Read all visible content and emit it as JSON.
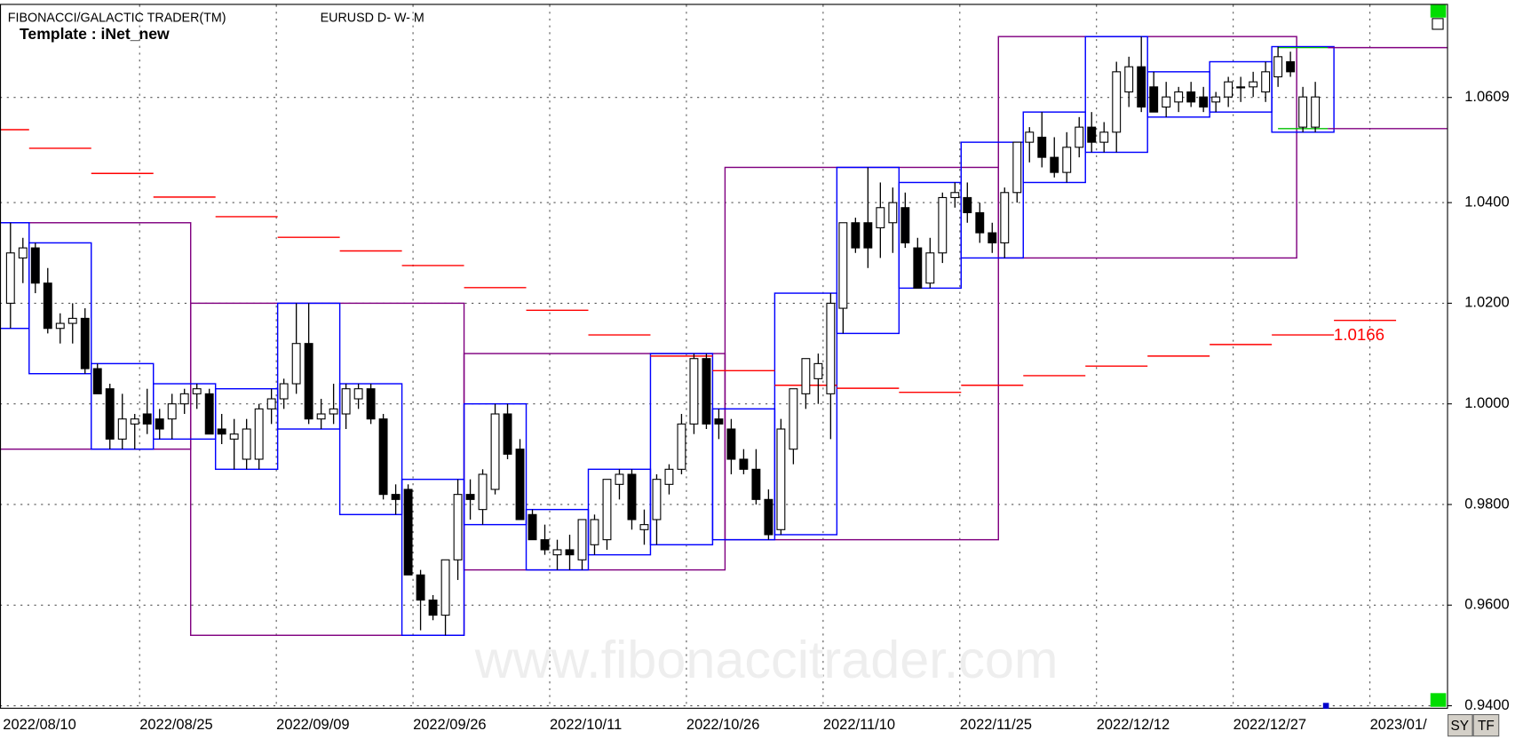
{
  "chart_data": {
    "type": "candlestick",
    "title": "FIBONACCI/GALACTIC TRADER(TM)",
    "subtitle": "EURUSD D- W- M",
    "template": "Template : iNet_new",
    "watermark": "www.fibonaccitrader.com",
    "buttons": [
      "SY",
      "TF"
    ],
    "ylim": [
      0.9396,
      1.0793
    ],
    "yticks": [
      1.0609,
      {
        "value": 1.04,
        "label": "1.0400"
      },
      {
        "value": 1.02,
        "label": "1.0200"
      },
      {
        "value": 1,
        "label": "1.0000"
      },
      {
        "value": 0.98,
        "label": "0.9800"
      },
      {
        "value": 0.96,
        "label": "0.9600"
      },
      {
        "value": 0.94,
        "label": "0.9400"
      }
    ],
    "grid": true,
    "categories": [
      "2022/08/10",
      null,
      null,
      null,
      null,
      null,
      null,
      null,
      null,
      null,
      null,
      "2022/08/25",
      null,
      null,
      null,
      null,
      null,
      null,
      null,
      null,
      null,
      null,
      "2022/09/09",
      null,
      null,
      null,
      null,
      null,
      null,
      null,
      null,
      null,
      null,
      "2022/09/26",
      null,
      null,
      null,
      null,
      null,
      null,
      null,
      null,
      null,
      null,
      "2022/10/11",
      null,
      null,
      null,
      null,
      null,
      null,
      null,
      null,
      null,
      null,
      "2022/10/26",
      null,
      null,
      null,
      null,
      null,
      null,
      null,
      null,
      null,
      null,
      "2022/11/10",
      null,
      null,
      null,
      null,
      null,
      null,
      null,
      null,
      null,
      null,
      "2022/11/25",
      null,
      null,
      null,
      null,
      null,
      null,
      null,
      null,
      null,
      null,
      "2022/12/12",
      null,
      null,
      null,
      null,
      null,
      null,
      null,
      null,
      null,
      null,
      "2022/12/27",
      null,
      null,
      null,
      null,
      null,
      null,
      null,
      null,
      null,
      null,
      "2023/01/"
    ],
    "ohlc": [
      null,
      [
        1.02,
        1.036,
        1.015,
        1.03
      ],
      [
        1.029,
        1.033,
        1.024,
        1.031
      ],
      [
        1.031,
        1.032,
        1.022,
        1.024
      ],
      [
        1.024,
        1.027,
        1.014,
        1.015
      ],
      [
        1.015,
        1.018,
        1.012,
        1.016
      ],
      [
        1.016,
        1.02,
        1.012,
        1.017
      ],
      [
        1.017,
        1.019,
        1.006,
        1.007
      ],
      [
        1.007,
        1.008,
        1.002,
        1.002
      ],
      [
        1.003,
        1.004,
        0.991,
        0.993
      ],
      [
        0.993,
        1.002,
        0.991,
        0.997
      ],
      [
        0.996,
        0.998,
        0.991,
        0.997
      ],
      [
        0.998,
        1.003,
        0.994,
        0.996
      ],
      [
        0.997,
        0.999,
        0.993,
        0.995
      ],
      [
        0.997,
        1.002,
        0.993,
        1.0
      ],
      [
        1.0,
        1.003,
        0.998,
        1.002
      ],
      [
        1.002,
        1.004,
        0.999,
        1.003
      ],
      [
        1.002,
        1.003,
        0.994,
        0.994
      ],
      [
        0.995,
        0.998,
        0.992,
        0.994
      ],
      [
        0.993,
        0.997,
        0.987,
        0.994
      ],
      [
        0.989,
        0.997,
        0.987,
        0.995
      ],
      [
        0.989,
        1.0,
        0.987,
        0.999
      ],
      [
        0.999,
        1.003,
        0.996,
        1.001
      ],
      [
        1.001,
        1.005,
        0.999,
        1.004
      ],
      [
        1.004,
        1.02,
        1.002,
        1.012
      ],
      [
        1.012,
        1.02,
        0.996,
        0.997
      ],
      [
        0.997,
        1.001,
        0.995,
        0.998
      ],
      [
        0.998,
        1.004,
        0.996,
        0.999
      ],
      [
        0.998,
        1.004,
        0.995,
        1.003
      ],
      [
        1.001,
        1.004,
        0.999,
        1.003
      ],
      [
        1.003,
        1.004,
        0.996,
        0.997
      ],
      [
        0.997,
        0.998,
        0.981,
        0.982
      ],
      [
        0.982,
        0.984,
        0.978,
        0.981
      ],
      [
        0.983,
        0.984,
        0.966,
        0.966
      ],
      [
        0.966,
        0.967,
        0.955,
        0.961
      ],
      [
        0.961,
        0.962,
        0.957,
        0.958
      ],
      [
        0.958,
        0.968,
        0.954,
        0.969
      ],
      [
        0.969,
        0.985,
        0.965,
        0.982
      ],
      [
        0.982,
        0.985,
        0.977,
        0.981
      ],
      [
        0.979,
        0.987,
        0.976,
        0.986
      ],
      [
        0.983,
        1.0,
        0.982,
        0.998
      ],
      [
        0.998,
        1.0,
        0.989,
        0.99
      ],
      [
        0.991,
        0.993,
        0.977,
        0.977
      ],
      [
        0.978,
        0.979,
        0.973,
        0.973
      ],
      [
        0.973,
        0.976,
        0.97,
        0.971
      ],
      [
        0.97,
        0.973,
        0.967,
        0.971
      ],
      [
        0.971,
        0.974,
        0.967,
        0.97
      ],
      [
        0.969,
        0.976,
        0.967,
        0.977
      ],
      [
        0.972,
        0.978,
        0.97,
        0.977
      ],
      [
        0.973,
        0.985,
        0.971,
        0.985
      ],
      [
        0.984,
        0.987,
        0.981,
        0.986
      ],
      [
        0.986,
        0.987,
        0.975,
        0.977
      ],
      [
        0.975,
        0.979,
        0.972,
        0.976
      ],
      [
        0.977,
        0.986,
        0.972,
        0.985
      ],
      [
        0.984,
        0.988,
        0.982,
        0.987
      ],
      [
        0.987,
        0.998,
        0.986,
        0.996
      ],
      [
        0.996,
        1.01,
        0.994,
        1.009
      ],
      [
        1.009,
        1.01,
        0.995,
        0.996
      ],
      [
        0.997,
        0.999,
        0.993,
        0.996
      ],
      [
        0.995,
        0.997,
        0.986,
        0.989
      ],
      [
        0.989,
        0.991,
        0.986,
        0.987
      ],
      [
        0.987,
        0.991,
        0.98,
        0.981
      ],
      [
        0.981,
        0.983,
        0.973,
        0.974
      ],
      [
        0.975,
        0.997,
        0.974,
        0.995
      ],
      [
        0.991,
        1.003,
        0.988,
        1.003
      ],
      [
        1.002,
        1.009,
        0.999,
        1.009
      ],
      [
        1.005,
        1.01,
        1.0,
        1.008
      ],
      [
        1.002,
        1.022,
        0.993,
        1.02
      ],
      [
        1.019,
        1.036,
        1.014,
        1.036
      ],
      [
        1.036,
        1.037,
        1.03,
        1.031
      ],
      [
        1.036,
        1.047,
        1.027,
        1.031
      ],
      [
        1.035,
        1.044,
        1.029,
        1.039
      ],
      [
        1.036,
        1.043,
        1.03,
        1.04
      ],
      [
        1.039,
        1.042,
        1.031,
        1.032
      ],
      [
        1.031,
        1.033,
        1.023,
        1.023
      ],
      [
        1.024,
        1.033,
        1.023,
        1.03
      ],
      [
        1.03,
        1.042,
        1.028,
        1.041
      ],
      [
        1.041,
        1.044,
        1.039,
        1.042
      ],
      [
        1.041,
        1.044,
        1.036,
        1.038
      ],
      [
        1.038,
        1.04,
        1.032,
        1.034
      ],
      [
        1.034,
        1.036,
        1.03,
        1.032
      ],
      [
        1.032,
        1.043,
        1.029,
        1.042
      ],
      [
        1.042,
        1.052,
        1.04,
        1.052
      ],
      [
        1.052,
        1.055,
        1.048,
        1.054
      ],
      [
        1.053,
        1.058,
        1.047,
        1.049
      ],
      [
        1.049,
        1.053,
        1.045,
        1.046
      ],
      [
        1.046,
        1.054,
        1.044,
        1.051
      ],
      [
        1.051,
        1.057,
        1.049,
        1.055
      ],
      [
        1.055,
        1.058,
        1.05,
        1.052
      ],
      [
        1.052,
        1.056,
        1.05,
        1.054
      ],
      [
        1.054,
        1.068,
        1.05,
        1.066
      ],
      [
        1.062,
        1.069,
        1.059,
        1.067
      ],
      [
        1.067,
        1.073,
        1.058,
        1.059
      ],
      [
        1.063,
        1.066,
        1.058,
        1.058
      ],
      [
        1.059,
        1.064,
        1.057,
        1.061
      ],
      [
        1.06,
        1.063,
        1.058,
        1.062
      ],
      [
        1.062,
        1.064,
        1.059,
        1.06
      ],
      [
        1.061,
        1.063,
        1.058,
        1.059
      ],
      [
        1.06,
        1.062,
        1.058,
        1.061
      ],
      [
        1.061,
        1.065,
        1.059,
        1.064
      ],
      [
        1.063,
        1.065,
        1.06,
        1.063
      ],
      [
        1.063,
        1.066,
        1.061,
        1.064
      ],
      [
        1.062,
        1.068,
        1.06,
        1.066
      ],
      [
        1.065,
        1.071,
        1.063,
        1.069
      ],
      [
        1.068,
        1.07,
        1.065,
        1.066
      ],
      [
        1.055,
        1.063,
        1.054,
        1.061
      ],
      [
        1.055,
        1.064,
        1.054,
        1.061
      ],
      null,
      null,
      null,
      null
    ],
    "pivot": {
      "color": "#ff0000",
      "values": [
        1.0545,
        1.0508,
        1.0458,
        1.0411,
        1.0372,
        1.0331,
        1.0304,
        1.0275,
        1.0231,
        1.0186,
        1.0137,
        1.0095,
        1.0066,
        1.0037,
        1.0031,
        1.0023,
        1.0037,
        1.0056,
        1.0075,
        1.0095,
        1.0118,
        1.0137,
        1.0166
      ]
    },
    "levels": [
      1.0708,
      1.0547
    ],
    "week_color": "#0000ff",
    "month_color": "#800080",
    "level_color": "#00c000"
  }
}
